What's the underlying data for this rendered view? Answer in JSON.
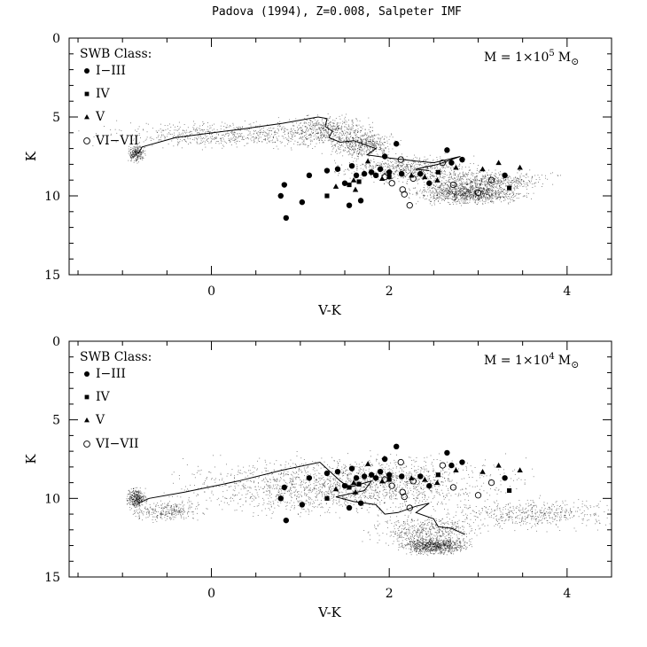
{
  "title": "Padova (1994), Z=0.008, Salpeter IMF",
  "colors": {
    "ink": "#000000",
    "background": "#ffffff"
  },
  "chart_data": [
    {
      "type": "scatter",
      "panel": "top",
      "xlabel": "V-K",
      "ylabel": "K",
      "xlim": [
        -1.6,
        4.5
      ],
      "ylim": [
        15,
        0
      ],
      "y_inverted": true,
      "x_ticks": [
        "0",
        "2",
        "4"
      ],
      "y_ticks": [
        "0",
        "5",
        "10",
        "15"
      ],
      "legend_title": "SWB Class:",
      "legend_position": "top-left",
      "mass_label": "M = 1×10",
      "mass_exponent": "5",
      "mass_unit": "M",
      "mass_unit_symbol": "⊙",
      "series": [
        {
          "name": "I−III",
          "marker": "filled-circle",
          "points": [
            [
              0.78,
              10.0
            ],
            [
              0.82,
              9.3
            ],
            [
              0.84,
              11.4
            ],
            [
              1.02,
              10.4
            ],
            [
              1.1,
              8.7
            ],
            [
              1.3,
              8.4
            ],
            [
              1.42,
              8.3
            ],
            [
              1.5,
              9.2
            ],
            [
              1.55,
              10.6
            ],
            [
              1.58,
              8.1
            ],
            [
              1.63,
              8.7
            ],
            [
              1.68,
              10.3
            ],
            [
              1.72,
              8.6
            ],
            [
              1.8,
              8.5
            ],
            [
              1.85,
              8.7
            ],
            [
              1.9,
              8.3
            ],
            [
              1.95,
              7.5
            ],
            [
              2.0,
              8.5
            ],
            [
              2.08,
              6.7
            ],
            [
              2.14,
              8.6
            ],
            [
              2.35,
              8.6
            ],
            [
              2.45,
              9.2
            ],
            [
              2.65,
              7.1
            ],
            [
              2.7,
              7.9
            ],
            [
              2.82,
              7.7
            ],
            [
              3.3,
              8.7
            ]
          ]
        },
        {
          "name": "IV",
          "marker": "filled-square",
          "points": [
            [
              1.3,
              10.0
            ],
            [
              1.55,
              9.3
            ],
            [
              1.66,
              9.1
            ],
            [
              2.0,
              8.8
            ],
            [
              2.55,
              8.5
            ],
            [
              3.35,
              9.5
            ]
          ]
        },
        {
          "name": "V",
          "marker": "filled-triangle",
          "points": [
            [
              1.4,
              9.4
            ],
            [
              1.6,
              9.0
            ],
            [
              1.62,
              9.6
            ],
            [
              1.76,
              7.8
            ],
            [
              1.92,
              8.9
            ],
            [
              2.25,
              8.7
            ],
            [
              2.4,
              8.8
            ],
            [
              2.54,
              9.0
            ],
            [
              2.75,
              8.2
            ],
            [
              3.05,
              8.3
            ],
            [
              3.23,
              7.9
            ],
            [
              3.47,
              8.2
            ]
          ]
        },
        {
          "name": "VI−VII",
          "marker": "open-circle",
          "points": [
            [
              1.95,
              8.8
            ],
            [
              2.03,
              9.2
            ],
            [
              2.13,
              7.7
            ],
            [
              2.15,
              9.6
            ],
            [
              2.17,
              9.9
            ],
            [
              2.23,
              10.6
            ],
            [
              2.27,
              8.9
            ],
            [
              2.6,
              7.9
            ],
            [
              2.72,
              9.3
            ],
            [
              3.0,
              9.8
            ],
            [
              3.15,
              9.0
            ]
          ]
        }
      ]
    },
    {
      "type": "scatter",
      "panel": "bottom",
      "xlabel": "V-K",
      "ylabel": "K",
      "xlim": [
        -1.6,
        4.5
      ],
      "ylim": [
        15,
        0
      ],
      "y_inverted": true,
      "x_ticks": [
        "0",
        "2",
        "4"
      ],
      "y_ticks": [
        "0",
        "5",
        "10",
        "15"
      ],
      "legend_title": "SWB Class:",
      "legend_position": "top-left",
      "mass_label": "M = 1×10",
      "mass_exponent": "4",
      "mass_unit": "M",
      "mass_unit_symbol": "⊙",
      "series": [
        {
          "name": "I−III",
          "marker": "filled-circle",
          "points": [
            [
              0.78,
              10.0
            ],
            [
              0.82,
              9.3
            ],
            [
              0.84,
              11.4
            ],
            [
              1.02,
              10.4
            ],
            [
              1.1,
              8.7
            ],
            [
              1.3,
              8.4
            ],
            [
              1.42,
              8.3
            ],
            [
              1.5,
              9.2
            ],
            [
              1.55,
              10.6
            ],
            [
              1.58,
              8.1
            ],
            [
              1.63,
              8.7
            ],
            [
              1.68,
              10.3
            ],
            [
              1.72,
              8.6
            ],
            [
              1.8,
              8.5
            ],
            [
              1.85,
              8.7
            ],
            [
              1.9,
              8.3
            ],
            [
              1.95,
              7.5
            ],
            [
              2.0,
              8.5
            ],
            [
              2.08,
              6.7
            ],
            [
              2.14,
              8.6
            ],
            [
              2.35,
              8.6
            ],
            [
              2.45,
              9.2
            ],
            [
              2.65,
              7.1
            ],
            [
              2.7,
              7.9
            ],
            [
              2.82,
              7.7
            ],
            [
              3.3,
              8.7
            ]
          ]
        },
        {
          "name": "IV",
          "marker": "filled-square",
          "points": [
            [
              1.3,
              10.0
            ],
            [
              1.55,
              9.3
            ],
            [
              1.66,
              9.1
            ],
            [
              2.0,
              8.8
            ],
            [
              2.55,
              8.5
            ],
            [
              3.35,
              9.5
            ]
          ]
        },
        {
          "name": "V",
          "marker": "filled-triangle",
          "points": [
            [
              1.4,
              9.4
            ],
            [
              1.6,
              9.0
            ],
            [
              1.62,
              9.6
            ],
            [
              1.76,
              7.8
            ],
            [
              1.92,
              8.9
            ],
            [
              2.25,
              8.7
            ],
            [
              2.4,
              8.8
            ],
            [
              2.54,
              9.0
            ],
            [
              2.75,
              8.2
            ],
            [
              3.05,
              8.3
            ],
            [
              3.23,
              7.9
            ],
            [
              3.47,
              8.2
            ]
          ]
        },
        {
          "name": "VI−VII",
          "marker": "open-circle",
          "points": [
            [
              1.95,
              8.8
            ],
            [
              2.03,
              9.2
            ],
            [
              2.13,
              7.7
            ],
            [
              2.15,
              9.6
            ],
            [
              2.17,
              9.9
            ],
            [
              2.23,
              10.6
            ],
            [
              2.27,
              8.9
            ],
            [
              2.6,
              7.9
            ],
            [
              2.72,
              9.3
            ],
            [
              3.0,
              9.8
            ],
            [
              3.15,
              9.0
            ]
          ]
        }
      ]
    }
  ]
}
